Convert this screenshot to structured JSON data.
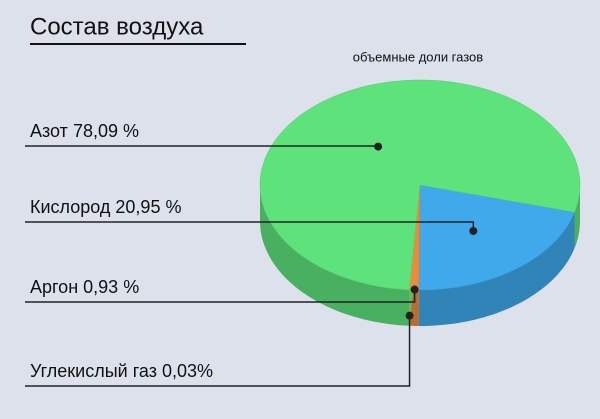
{
  "chart_data": {
    "type": "pie",
    "title": "Состав воздуха",
    "subtitle": "объемные доли газов",
    "categories": [
      "Азот",
      "Кислород",
      "Аргон",
      "Углекислый газ"
    ],
    "values": [
      78.09,
      20.95,
      0.93,
      0.03
    ],
    "value_labels": [
      "78,09 %",
      "20,95 %",
      "0,93 %",
      "0,03%"
    ],
    "colors": [
      "#5ee27c",
      "#3fa9ec",
      "#ec8a3c",
      "#e9c23f"
    ]
  }
}
